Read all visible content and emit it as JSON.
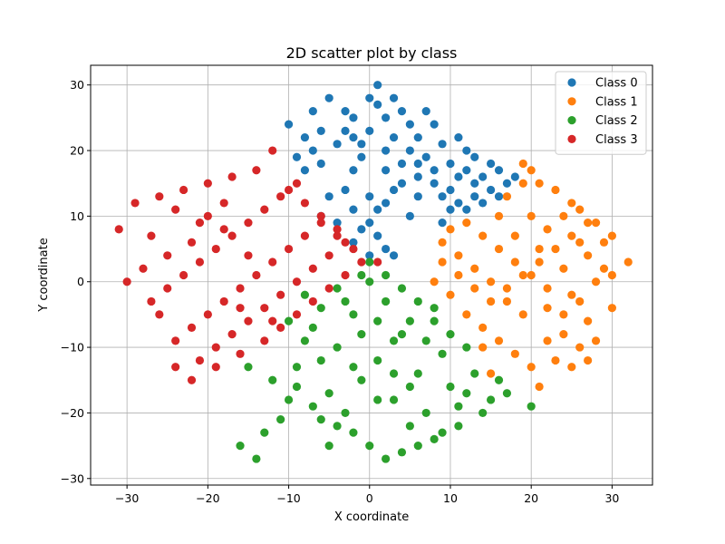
{
  "chart_data": {
    "type": "scatter",
    "title": "2D scatter plot by class",
    "xlabel": "X coordinate",
    "ylabel": "Y coordinate",
    "xlim": [
      -34.5,
      35
    ],
    "ylim": [
      -31,
      33
    ],
    "xticks": [
      -30,
      -20,
      -10,
      0,
      10,
      20,
      30
    ],
    "yticks": [
      -30,
      -20,
      -10,
      0,
      10,
      20,
      30
    ],
    "grid": true,
    "legend_position": "top-right",
    "series": [
      {
        "name": "Class 0",
        "color": "#1f77b4",
        "points": [
          [
            0,
            23
          ],
          [
            -2,
            25
          ],
          [
            1,
            27
          ],
          [
            3,
            22
          ],
          [
            -4,
            21
          ],
          [
            5,
            24
          ],
          [
            2,
            20
          ],
          [
            -1,
            19
          ],
          [
            4,
            18
          ],
          [
            -3,
            26
          ],
          [
            6,
            22
          ],
          [
            -6,
            23
          ],
          [
            1,
            30
          ],
          [
            -5,
            28
          ],
          [
            3,
            28
          ],
          [
            7,
            19
          ],
          [
            -7,
            20
          ],
          [
            8,
            24
          ],
          [
            -8,
            17
          ],
          [
            9,
            21
          ],
          [
            10,
            18
          ],
          [
            11,
            16
          ],
          [
            12,
            17
          ],
          [
            13,
            15
          ],
          [
            14,
            16
          ],
          [
            15,
            14
          ],
          [
            16,
            17
          ],
          [
            15,
            18
          ],
          [
            13,
            19
          ],
          [
            12,
            20
          ],
          [
            11,
            22
          ],
          [
            -10,
            24
          ],
          [
            -9,
            19
          ],
          [
            -5,
            13
          ],
          [
            -3,
            14
          ],
          [
            -2,
            11
          ],
          [
            0,
            13
          ],
          [
            1,
            11
          ],
          [
            2,
            12
          ],
          [
            0,
            9
          ],
          [
            -1,
            8
          ],
          [
            1,
            7
          ],
          [
            2,
            5
          ],
          [
            3,
            4
          ],
          [
            0,
            4
          ],
          [
            -2,
            6
          ],
          [
            5,
            10
          ],
          [
            6,
            13
          ],
          [
            4,
            15
          ],
          [
            6,
            16
          ],
          [
            8,
            15
          ],
          [
            9,
            13
          ],
          [
            10,
            14
          ],
          [
            11,
            12
          ],
          [
            12,
            11
          ],
          [
            13,
            13
          ],
          [
            14,
            12
          ],
          [
            16,
            13
          ],
          [
            17,
            15
          ],
          [
            18,
            16
          ],
          [
            9,
            9
          ],
          [
            -6,
            10
          ],
          [
            -4,
            9
          ],
          [
            -2,
            17
          ],
          [
            -1,
            21
          ],
          [
            2,
            17
          ],
          [
            5,
            20
          ],
          [
            7,
            26
          ],
          [
            -7,
            26
          ],
          [
            4,
            26
          ],
          [
            -2,
            22
          ],
          [
            0,
            28
          ],
          [
            2,
            25
          ],
          [
            -3,
            23
          ],
          [
            6,
            18
          ],
          [
            -6,
            18
          ],
          [
            3,
            14
          ],
          [
            8,
            17
          ],
          [
            10,
            11
          ],
          [
            -8,
            22
          ]
        ]
      },
      {
        "name": "Class 1",
        "color": "#ff7f0e",
        "points": [
          [
            20,
            10
          ],
          [
            22,
            8
          ],
          [
            25,
            12
          ],
          [
            28,
            9
          ],
          [
            30,
            7
          ],
          [
            32,
            3
          ],
          [
            27,
            4
          ],
          [
            24,
            2
          ],
          [
            21,
            5
          ],
          [
            18,
            7
          ],
          [
            16,
            10
          ],
          [
            17,
            13
          ],
          [
            19,
            15
          ],
          [
            20,
            17
          ],
          [
            23,
            14
          ],
          [
            26,
            11
          ],
          [
            29,
            6
          ],
          [
            30,
            -4
          ],
          [
            27,
            -6
          ],
          [
            25,
            -2
          ],
          [
            22,
            -4
          ],
          [
            19,
            -5
          ],
          [
            17,
            -3
          ],
          [
            15,
            0
          ],
          [
            13,
            2
          ],
          [
            11,
            4
          ],
          [
            9,
            6
          ],
          [
            10,
            8
          ],
          [
            12,
            9
          ],
          [
            14,
            7
          ],
          [
            16,
            5
          ],
          [
            18,
            3
          ],
          [
            20,
            1
          ],
          [
            22,
            -1
          ],
          [
            24,
            -8
          ],
          [
            26,
            -10
          ],
          [
            28,
            -9
          ],
          [
            23,
            -12
          ],
          [
            20,
            -13
          ],
          [
            18,
            -11
          ],
          [
            16,
            -9
          ],
          [
            14,
            -7
          ],
          [
            12,
            -5
          ],
          [
            10,
            -2
          ],
          [
            8,
            0
          ],
          [
            9,
            3
          ],
          [
            11,
            1
          ],
          [
            13,
            -1
          ],
          [
            15,
            -3
          ],
          [
            17,
            -1
          ],
          [
            19,
            1
          ],
          [
            21,
            3
          ],
          [
            23,
            5
          ],
          [
            25,
            7
          ],
          [
            27,
            9
          ],
          [
            29,
            2
          ],
          [
            28,
            0
          ],
          [
            26,
            -3
          ],
          [
            24,
            -5
          ],
          [
            22,
            -9
          ],
          [
            21,
            -16
          ],
          [
            25,
            -13
          ],
          [
            27,
            -12
          ],
          [
            14,
            -10
          ],
          [
            15,
            -14
          ],
          [
            19,
            18
          ],
          [
            21,
            15
          ],
          [
            24,
            10
          ],
          [
            26,
            6
          ],
          [
            30,
            1
          ]
        ]
      },
      {
        "name": "Class 2",
        "color": "#2ca02c",
        "points": [
          [
            0,
            0
          ],
          [
            2,
            -3
          ],
          [
            -2,
            -5
          ],
          [
            4,
            -8
          ],
          [
            -4,
            -10
          ],
          [
            1,
            -12
          ],
          [
            -1,
            -15
          ],
          [
            3,
            -18
          ],
          [
            -3,
            -20
          ],
          [
            5,
            -22
          ],
          [
            -5,
            -17
          ],
          [
            6,
            -14
          ],
          [
            -6,
            -12
          ],
          [
            7,
            -9
          ],
          [
            -7,
            -7
          ],
          [
            8,
            -4
          ],
          [
            -8,
            -2
          ],
          [
            9,
            -11
          ],
          [
            -9,
            -13
          ],
          [
            10,
            -16
          ],
          [
            -10,
            -18
          ],
          [
            11,
            -19
          ],
          [
            -11,
            -21
          ],
          [
            12,
            -17
          ],
          [
            -12,
            -15
          ],
          [
            13,
            -14
          ],
          [
            -13,
            -23
          ],
          [
            14,
            -20
          ],
          [
            -14,
            -27
          ],
          [
            15,
            -18
          ],
          [
            -15,
            -13
          ],
          [
            16,
            -15
          ],
          [
            -16,
            -25
          ],
          [
            17,
            -17
          ],
          [
            20,
            -19
          ],
          [
            0,
            -25
          ],
          [
            2,
            -27
          ],
          [
            4,
            -26
          ],
          [
            6,
            -25
          ],
          [
            8,
            -24
          ],
          [
            -2,
            -23
          ],
          [
            -4,
            -22
          ],
          [
            -6,
            -21
          ],
          [
            1,
            -6
          ],
          [
            3,
            -9
          ],
          [
            -1,
            -8
          ],
          [
            5,
            -6
          ],
          [
            -3,
            -3
          ],
          [
            2,
            1
          ],
          [
            0,
            3
          ],
          [
            -1,
            1
          ],
          [
            4,
            -1
          ],
          [
            6,
            -3
          ],
          [
            8,
            -6
          ],
          [
            10,
            -8
          ],
          [
            12,
            -10
          ],
          [
            -10,
            -6
          ],
          [
            -8,
            -9
          ],
          [
            -6,
            -4
          ],
          [
            -4,
            -1
          ],
          [
            3,
            -14
          ],
          [
            -2,
            -13
          ],
          [
            1,
            -18
          ],
          [
            5,
            -16
          ],
          [
            -5,
            -25
          ],
          [
            7,
            -20
          ],
          [
            9,
            -23
          ],
          [
            11,
            -22
          ],
          [
            -7,
            -19
          ],
          [
            -9,
            -16
          ]
        ]
      },
      {
        "name": "Class 3",
        "color": "#d62728",
        "points": [
          [
            -20,
            10
          ],
          [
            -18,
            8
          ],
          [
            -22,
            6
          ],
          [
            -25,
            4
          ],
          [
            -28,
            2
          ],
          [
            -30,
            0
          ],
          [
            -31,
            8
          ],
          [
            -29,
            12
          ],
          [
            -26,
            13
          ],
          [
            -23,
            14
          ],
          [
            -20,
            15
          ],
          [
            -17,
            16
          ],
          [
            -14,
            17
          ],
          [
            -12,
            20
          ],
          [
            -10,
            14
          ],
          [
            -8,
            12
          ],
          [
            -6,
            10
          ],
          [
            -4,
            8
          ],
          [
            -3,
            6
          ],
          [
            -5,
            4
          ],
          [
            -7,
            2
          ],
          [
            -9,
            0
          ],
          [
            -11,
            -2
          ],
          [
            -13,
            -4
          ],
          [
            -15,
            -6
          ],
          [
            -17,
            -8
          ],
          [
            -19,
            -10
          ],
          [
            -21,
            -12
          ],
          [
            -24,
            -13
          ],
          [
            -22,
            -15
          ],
          [
            -19,
            -13
          ],
          [
            -16,
            -11
          ],
          [
            -13,
            -9
          ],
          [
            -11,
            -7
          ],
          [
            -9,
            -5
          ],
          [
            -7,
            -3
          ],
          [
            -5,
            -1
          ],
          [
            -3,
            1
          ],
          [
            -1,
            3
          ],
          [
            1,
            3
          ],
          [
            -2,
            5
          ],
          [
            -4,
            7
          ],
          [
            -6,
            9
          ],
          [
            -8,
            7
          ],
          [
            -10,
            5
          ],
          [
            -12,
            3
          ],
          [
            -14,
            1
          ],
          [
            -16,
            -1
          ],
          [
            -18,
            -3
          ],
          [
            -20,
            -5
          ],
          [
            -22,
            -7
          ],
          [
            -24,
            -9
          ],
          [
            -26,
            -5
          ],
          [
            -27,
            -3
          ],
          [
            -25,
            -1
          ],
          [
            -23,
            1
          ],
          [
            -21,
            3
          ],
          [
            -19,
            5
          ],
          [
            -17,
            7
          ],
          [
            -15,
            9
          ],
          [
            -13,
            11
          ],
          [
            -11,
            13
          ],
          [
            -9,
            15
          ],
          [
            -15,
            4
          ],
          [
            -18,
            12
          ],
          [
            -21,
            9
          ],
          [
            -24,
            11
          ],
          [
            -27,
            7
          ],
          [
            -16,
            -4
          ],
          [
            -12,
            -6
          ]
        ]
      }
    ]
  }
}
